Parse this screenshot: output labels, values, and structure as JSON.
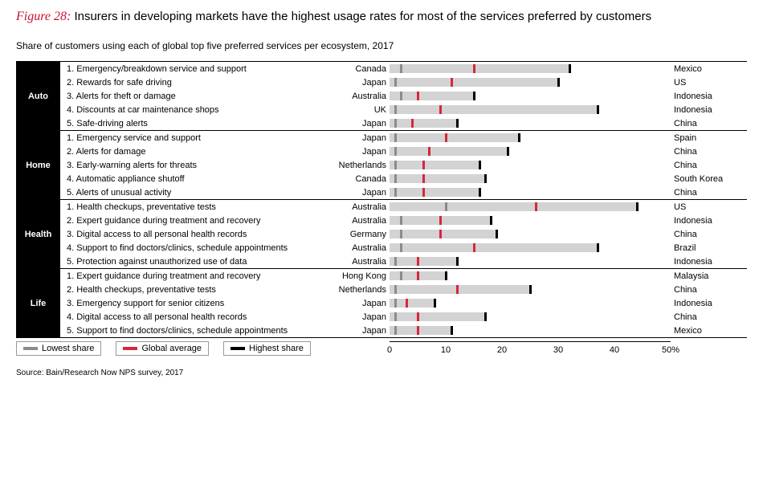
{
  "figure_label": "Figure 28:",
  "title": "Insurers in developing markets have the highest usage rates for most of the services preferred by customers",
  "subtitle": "Share of customers using each of global top five preferred services per ecosystem, 2017",
  "legend": {
    "low": "Lowest share",
    "avg": "Global average",
    "high": "Highest share"
  },
  "colors": {
    "bar_bg": "#d3d3d3",
    "low_tick": "#8b8b8b",
    "avg_tick": "#d7263d",
    "high_tick": "#000000",
    "category_bg": "#000000",
    "accent": "#c8102e"
  },
  "axis": {
    "min": 0,
    "max": 50,
    "ticks": [
      0,
      10,
      20,
      30,
      40,
      "50%"
    ]
  },
  "groups": [
    {
      "name": "Auto",
      "rows": [
        {
          "n": "1.",
          "label": "Emergency/breakdown service and support",
          "low_label": "Canada",
          "high_label": "Mexico",
          "low": 2,
          "avg": 15,
          "high": 32
        },
        {
          "n": "2.",
          "label": "Rewards for safe driving",
          "low_label": "Japan",
          "high_label": "US",
          "low": 1,
          "avg": 11,
          "high": 30
        },
        {
          "n": "3.",
          "label": "Alerts for theft or damage",
          "low_label": "Australia",
          "high_label": "Indonesia",
          "low": 2,
          "avg": 5,
          "high": 15
        },
        {
          "n": "4.",
          "label": "Discounts at car maintenance shops",
          "low_label": "UK",
          "high_label": "Indonesia",
          "low": 1,
          "avg": 9,
          "high": 37
        },
        {
          "n": "5.",
          "label": "Safe-driving alerts",
          "low_label": "Japan",
          "high_label": "China",
          "low": 1,
          "avg": 4,
          "high": 12
        }
      ]
    },
    {
      "name": "Home",
      "rows": [
        {
          "n": "1.",
          "label": "Emergency service and support",
          "low_label": "Japan",
          "high_label": "Spain",
          "low": 1,
          "avg": 10,
          "high": 23
        },
        {
          "n": "2.",
          "label": "Alerts for damage",
          "low_label": "Japan",
          "high_label": "China",
          "low": 1,
          "avg": 7,
          "high": 21
        },
        {
          "n": "3.",
          "label": "Early-warning alerts for threats",
          "low_label": "Netherlands",
          "high_label": "China",
          "low": 1,
          "avg": 6,
          "high": 16
        },
        {
          "n": "4.",
          "label": "Automatic appliance shutoff",
          "low_label": "Canada",
          "high_label": "South Korea",
          "low": 1,
          "avg": 6,
          "high": 17
        },
        {
          "n": "5.",
          "label": "Alerts of unusual activity",
          "low_label": "Japan",
          "high_label": "China",
          "low": 1,
          "avg": 6,
          "high": 16
        }
      ]
    },
    {
      "name": "Health",
      "rows": [
        {
          "n": "1.",
          "label": "Health checkups, preventative tests",
          "low_label": "Australia",
          "high_label": "US",
          "low": 10,
          "avg": 26,
          "high": 44
        },
        {
          "n": "2.",
          "label": "Expert guidance during treatment and recovery",
          "low_label": "Australia",
          "high_label": "Indonesia",
          "low": 2,
          "avg": 9,
          "high": 18
        },
        {
          "n": "3.",
          "label": "Digital access to all personal health records",
          "low_label": "Germany",
          "high_label": "China",
          "low": 2,
          "avg": 9,
          "high": 19
        },
        {
          "n": "4.",
          "label": "Support to find doctors/clinics, schedule appointments",
          "low_label": "Australia",
          "high_label": "Brazil",
          "low": 2,
          "avg": 15,
          "high": 37
        },
        {
          "n": "5.",
          "label": "Protection against unauthorized use of data",
          "low_label": "Australia",
          "high_label": "Indonesia",
          "low": 1,
          "avg": 5,
          "high": 12
        }
      ]
    },
    {
      "name": "Life",
      "rows": [
        {
          "n": "1.",
          "label": "Expert guidance during treatment and recovery",
          "low_label": "Hong Kong",
          "high_label": "Malaysia",
          "low": 2,
          "avg": 5,
          "high": 10
        },
        {
          "n": "2.",
          "label": "Health checkups, preventative tests",
          "low_label": "Netherlands",
          "high_label": "China",
          "low": 1,
          "avg": 12,
          "high": 25
        },
        {
          "n": "3.",
          "label": "Emergency support for senior citizens",
          "low_label": "Japan",
          "high_label": "Indonesia",
          "low": 1,
          "avg": 3,
          "high": 8
        },
        {
          "n": "4.",
          "label": "Digital access to all personal health records",
          "low_label": "Japan",
          "high_label": "China",
          "low": 1,
          "avg": 5,
          "high": 17
        },
        {
          "n": "5.",
          "label": "Support to find doctors/clinics, schedule appointments",
          "low_label": "Japan",
          "high_label": "Mexico",
          "low": 1,
          "avg": 5,
          "high": 11
        }
      ]
    }
  ],
  "source": "Source: Bain/Research Now NPS survey, 2017"
}
